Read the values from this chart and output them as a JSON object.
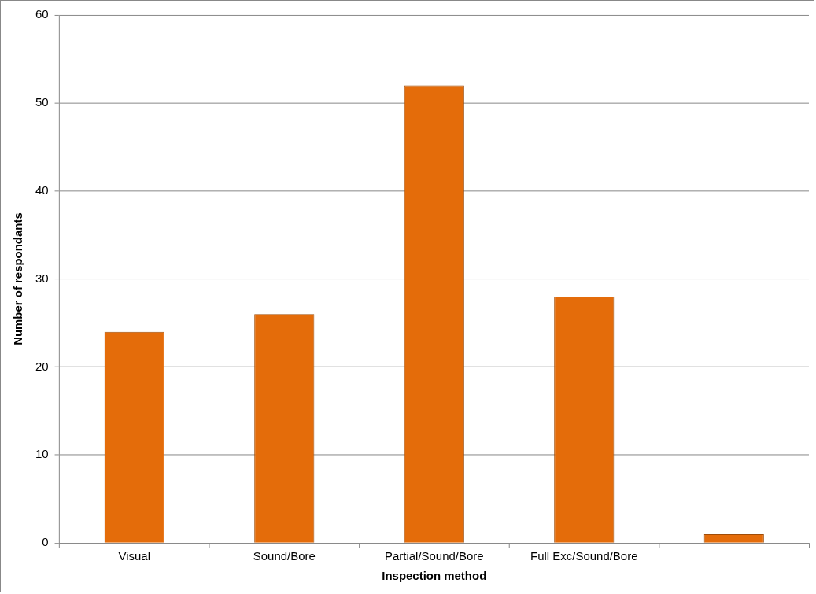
{
  "chart_data": {
    "type": "bar",
    "xlabel": "Inspection method",
    "ylabel": "Number of respondants",
    "categories": [
      "Visual",
      "Sound/Bore",
      "Partial/Sound/Bore",
      "Full Exc/Sound/Bore",
      null
    ],
    "values": [
      24,
      26,
      52,
      28,
      1
    ],
    "color": "#e46c0a",
    "ylim": [
      0,
      60
    ],
    "yticks": [
      0,
      10,
      20,
      30,
      40,
      50,
      60
    ],
    "grid": "y",
    "legend": false
  }
}
